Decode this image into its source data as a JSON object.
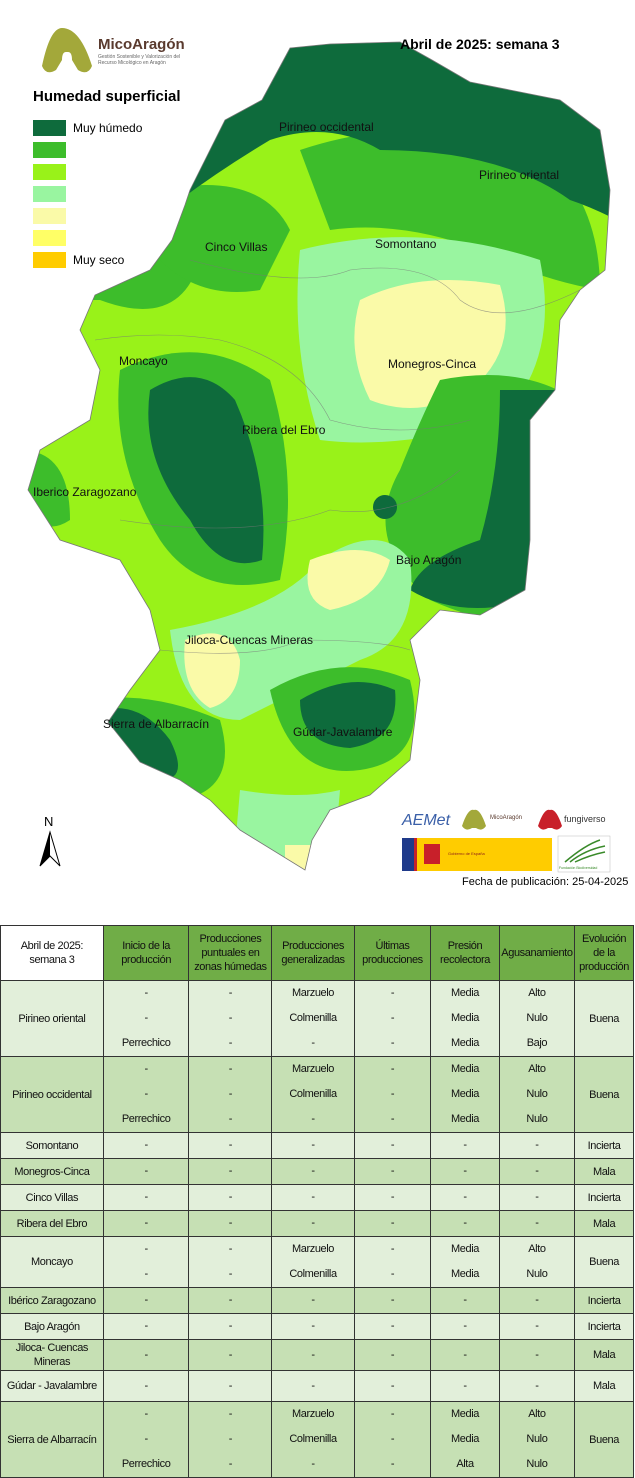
{
  "header": {
    "title": "Abril de 2025: semana 3",
    "logo_name": "MicoAragón",
    "logo_subtitle": "Gestión Sostenible y Valorización del Recurso Micológico en Aragón"
  },
  "legend": {
    "title": "Humedad superficial",
    "items": [
      {
        "color": "#0e6b3c",
        "label": "Muy húmedo"
      },
      {
        "color": "#3dbd2b",
        "label": ""
      },
      {
        "color": "#99f219",
        "label": ""
      },
      {
        "color": "#99f5a0",
        "label": ""
      },
      {
        "color": "#fafaa8",
        "label": ""
      },
      {
        "color": "#ffff66",
        "label": ""
      },
      {
        "color": "#ffcc00",
        "label": "Muy seco"
      }
    ]
  },
  "map": {
    "regions": [
      "Pirineo occidental",
      "Pirineo oriental",
      "Cinco Villas",
      "Somontano",
      "Moncayo",
      "Monegros-Cinca",
      "Ribera del Ebro",
      "Iberico Zaragozano",
      "Bajo Aragón",
      "Jiloca-Cuencas Mineras",
      "Sierra de Albarracín",
      "Gúdar-Javalambre"
    ],
    "north_label": "N"
  },
  "sponsors": [
    "AEMet",
    "MicoAragón",
    "fungiverso",
    "Gobierno de España",
    "Fundación Biodiversidad"
  ],
  "publication_date": "Fecha de publicación: 25-04-2025",
  "table": {
    "corner": "Abril de 2025: semana 3",
    "columns": [
      "Inicio de la producción",
      "Producciones puntuales en zonas húmedas",
      "Producciones generalizadas",
      "Últimas producciones",
      "Presión recolectora",
      "Agusanamiento",
      "Evolución de la producción"
    ],
    "rows": [
      {
        "region": "Pirineo oriental",
        "lines": [
          [
            "-",
            "-",
            "Marzuelo",
            "-",
            "Media",
            "Alto"
          ],
          [
            "-",
            "-",
            "Colmenilla",
            "-",
            "Media",
            "Nulo"
          ],
          [
            "Perrechico",
            "-",
            "-",
            "-",
            "Media",
            "Bajo"
          ]
        ],
        "evolucion": "Buena"
      },
      {
        "region": "Pirineo occidental",
        "lines": [
          [
            "-",
            "-",
            "Marzuelo",
            "-",
            "Media",
            "Alto"
          ],
          [
            "-",
            "-",
            "Colmenilla",
            "-",
            "Media",
            "Nulo"
          ],
          [
            "Perrechico",
            "-",
            "-",
            "-",
            "Media",
            "Nulo"
          ]
        ],
        "evolucion": "Buena"
      },
      {
        "region": "Somontano",
        "lines": [
          [
            "-",
            "-",
            "-",
            "-",
            "-",
            "-"
          ]
        ],
        "evolucion": "Incierta"
      },
      {
        "region": "Monegros-Cinca",
        "lines": [
          [
            "-",
            "-",
            "-",
            "-",
            "-",
            "-"
          ]
        ],
        "evolucion": "Mala"
      },
      {
        "region": "Cinco Villas",
        "lines": [
          [
            "-",
            "-",
            "-",
            "-",
            "-",
            "-"
          ]
        ],
        "evolucion": "Incierta"
      },
      {
        "region": "Ribera del Ebro",
        "lines": [
          [
            "-",
            "-",
            "-",
            "-",
            "-",
            "-"
          ]
        ],
        "evolucion": "Mala"
      },
      {
        "region": "Moncayo",
        "lines": [
          [
            "-",
            "-",
            "Marzuelo",
            "-",
            "Media",
            "Alto"
          ],
          [
            "-",
            "-",
            "Colmenilla",
            "-",
            "Media",
            "Nulo"
          ]
        ],
        "evolucion": "Buena"
      },
      {
        "region": "Ibérico Zaragozano",
        "lines": [
          [
            "-",
            "-",
            "-",
            "-",
            "-",
            "-"
          ]
        ],
        "evolucion": "Incierta"
      },
      {
        "region": "Bajo Aragón",
        "lines": [
          [
            "-",
            "-",
            "-",
            "-",
            "-",
            "-"
          ]
        ],
        "evolucion": "Incierta"
      },
      {
        "region": "Jiloca- Cuencas Mineras",
        "lines": [
          [
            "-",
            "-",
            "-",
            "-",
            "-",
            "-"
          ]
        ],
        "evolucion": "Mala",
        "tall": true
      },
      {
        "region": "Gúdar - Javalambre",
        "lines": [
          [
            "-",
            "-",
            "-",
            "-",
            "-",
            "-"
          ]
        ],
        "evolucion": "Mala",
        "tall": true
      },
      {
        "region": "Sierra de Albarracín",
        "lines": [
          [
            "-",
            "-",
            "Marzuelo",
            "-",
            "Media",
            "Alto"
          ],
          [
            "-",
            "-",
            "Colmenilla",
            "-",
            "Media",
            "Nulo"
          ],
          [
            "Perrechico",
            "-",
            "-",
            "-",
            "Alta",
            "Nulo"
          ]
        ],
        "evolucion": "Buena"
      }
    ]
  }
}
